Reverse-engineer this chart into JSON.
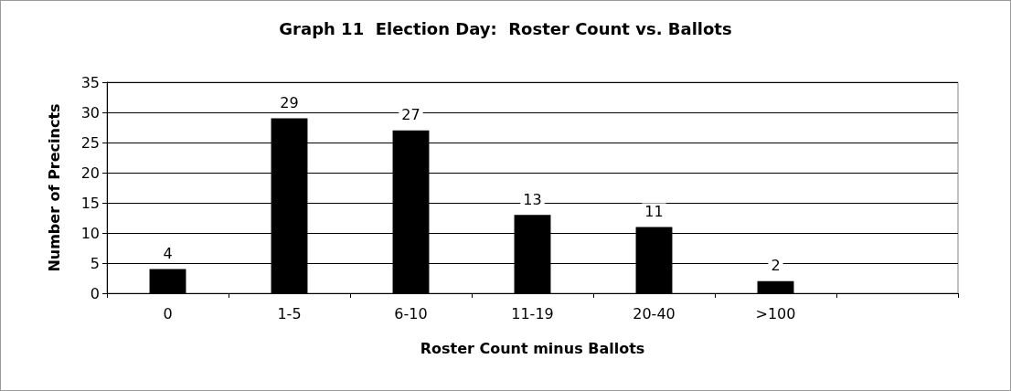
{
  "chart_data": {
    "type": "bar",
    "title": "Graph 11  Election Day:  Roster Count vs. Ballots",
    "xlabel": "Roster Count minus Ballots",
    "ylabel": "Number of Precincts",
    "categories": [
      "0",
      "1-5",
      "6-10",
      "11-19",
      "20-40",
      ">100",
      null
    ],
    "values": [
      4,
      29,
      27,
      13,
      11,
      2,
      null
    ],
    "color": "#000000",
    "ylim": [
      0,
      35
    ],
    "yticks": [
      0,
      5,
      10,
      15,
      20,
      25,
      30,
      35
    ],
    "grid": "y",
    "data_labels": true
  }
}
